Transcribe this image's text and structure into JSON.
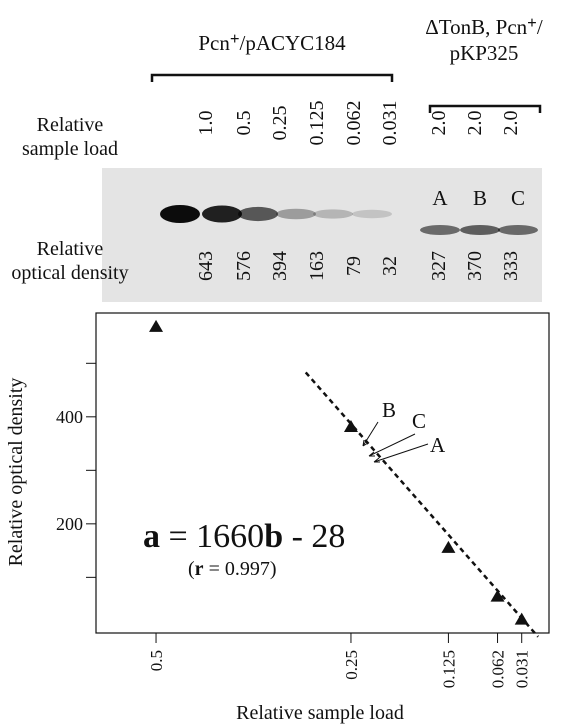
{
  "blot": {
    "header_left": [
      "Pcn",
      "+",
      "/pACYC184"
    ],
    "header_right_line1": [
      "ΔTonB, Pcn",
      "+",
      "/"
    ],
    "header_right_line2": "pKP325",
    "row_load_label": [
      "Relative",
      "sample load"
    ],
    "loads": [
      "1.0",
      "0.5",
      "0.25",
      "0.125",
      "0.062",
      "0.031",
      "2.0",
      "2.0",
      "2.0"
    ],
    "lane_labels": [
      "A",
      "B",
      "C"
    ],
    "row_density_label": [
      "Relative",
      "optical density"
    ],
    "densities": [
      643,
      576,
      394,
      163,
      79,
      32,
      327,
      370,
      333
    ]
  },
  "chart_data": {
    "type": "scatter",
    "x": [
      0.5,
      0.25,
      0.125,
      0.062,
      0.031
    ],
    "values": [
      568,
      381,
      155,
      64,
      21
    ],
    "marker_color": "#111111",
    "xlim": [
      0.577,
      -0.004
    ],
    "ylim": [
      -4,
      594
    ],
    "xticks": [
      0.5,
      0.25,
      0.125,
      0.062,
      0.031
    ],
    "yticks": [
      200,
      400
    ],
    "minor_yticks": [
      100,
      300,
      500
    ],
    "xlabel": "Relative sample load",
    "ylabel": "Relative optical density",
    "fit_line": {
      "x": [
        0.308,
        0.01
      ],
      "y": [
        483,
        -11
      ]
    },
    "equation": [
      "a",
      " = 1660",
      "b",
      " - 28"
    ],
    "correlation": [
      "(",
      "r",
      " = 0.997)"
    ],
    "annotations": [
      "B",
      "C",
      "A"
    ]
  }
}
